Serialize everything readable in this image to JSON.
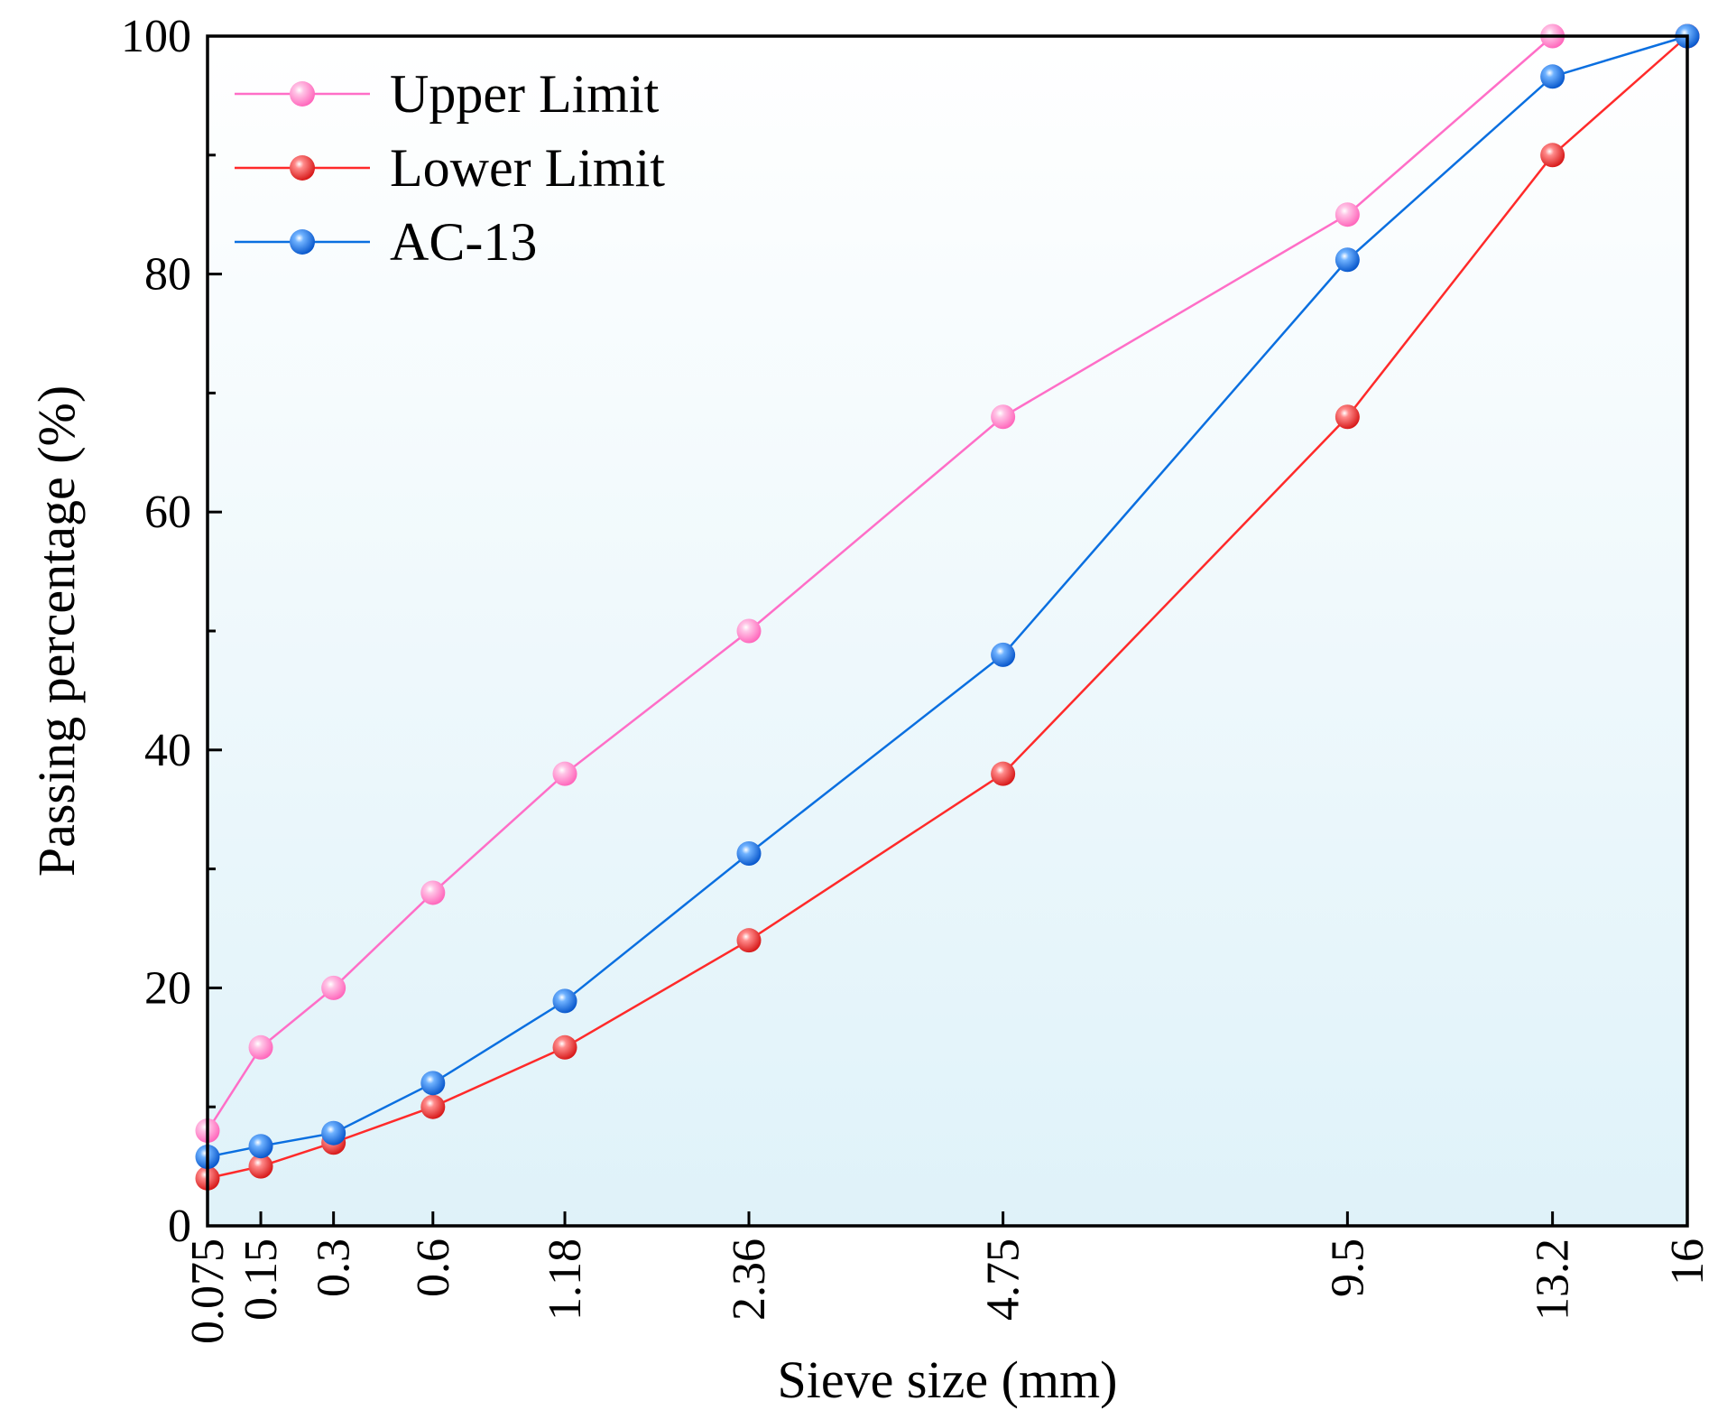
{
  "chart_data": {
    "type": "line",
    "xlabel": "Sieve size (mm)",
    "ylabel": "Passing percentage (%)",
    "ylim": [
      0,
      100
    ],
    "x_scale": "power-0.45",
    "x_ticks": [
      "0.075",
      "0.15",
      "0.3",
      "0.6",
      "1.18",
      "2.36",
      "4.75",
      "9.5",
      "13.2",
      "16"
    ],
    "x": [
      0.075,
      0.15,
      0.3,
      0.6,
      1.18,
      2.36,
      4.75,
      9.5,
      13.2,
      16
    ],
    "y_ticks": [
      "0",
      "20",
      "40",
      "60",
      "80",
      "100"
    ],
    "y_tick_values": [
      0,
      20,
      40,
      60,
      80,
      100
    ],
    "grid": false,
    "legend_position": "top-left",
    "series": [
      {
        "name": "Upper Limit",
        "color": "#ff6ec7",
        "values": [
          8,
          15,
          20,
          28,
          38,
          50,
          68,
          85,
          100,
          100
        ]
      },
      {
        "name": "Lower Limit",
        "color": "#ff2a2a",
        "values": [
          4,
          5,
          7,
          10,
          15,
          24,
          38,
          68,
          90,
          100
        ]
      },
      {
        "name": "AC-13",
        "color": "#0a6fe0",
        "values": [
          5.8,
          6.7,
          7.8,
          12,
          18.9,
          31.3,
          48,
          81.2,
          96.6,
          100
        ]
      }
    ]
  }
}
